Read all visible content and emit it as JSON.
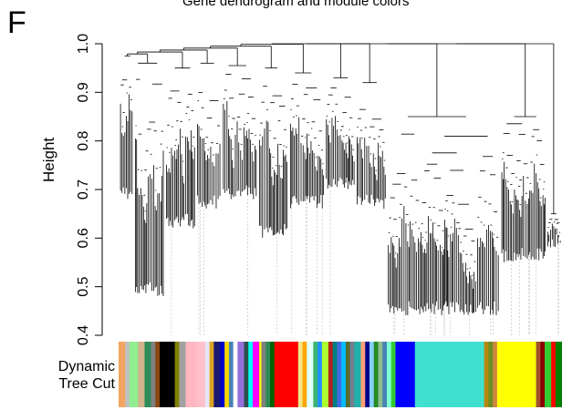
{
  "panel_label": "F",
  "colors": {
    "axis": "#000000",
    "guide": "#bbbbbb",
    "branch": "#000000"
  },
  "chart_data": {
    "type": "dendrogram",
    "title": "Gene dendrogram and module colors",
    "xlabel": "",
    "ylabel": "Height",
    "ylim": [
      0.4,
      1.0
    ],
    "yticks": [
      "0.4",
      "0.5",
      "0.6",
      "0.7",
      "0.8",
      "0.9",
      "1.0"
    ],
    "colorbar_label": [
      "Dynamic",
      "Tree Cut"
    ],
    "clusters": [
      {
        "merge_height": 0.975,
        "min_leaf_height": 0.68,
        "width": 0.03
      },
      {
        "merge_height": 0.96,
        "min_leaf_height": 0.48,
        "width": 0.06
      },
      {
        "merge_height": 0.95,
        "min_leaf_height": 0.62,
        "width": 0.06
      },
      {
        "merge_height": 0.96,
        "min_leaf_height": 0.66,
        "width": 0.05
      },
      {
        "merge_height": 0.955,
        "min_leaf_height": 0.68,
        "width": 0.07
      },
      {
        "merge_height": 0.95,
        "min_leaf_height": 0.6,
        "width": 0.06
      },
      {
        "merge_height": 0.94,
        "min_leaf_height": 0.66,
        "width": 0.07
      },
      {
        "merge_height": 0.93,
        "min_leaf_height": 0.7,
        "width": 0.06
      },
      {
        "merge_height": 0.92,
        "min_leaf_height": 0.66,
        "width": 0.06
      },
      {
        "merge_height": 0.85,
        "min_leaf_height": 0.44,
        "width": 0.22
      },
      {
        "merge_height": 0.85,
        "min_leaf_height": 0.55,
        "width": 0.09
      },
      {
        "merge_height": 0.65,
        "min_leaf_height": 0.58,
        "width": 0.03
      }
    ],
    "module_colors": [
      {
        "color": "#f4a460",
        "width": 3
      },
      {
        "color": "#c0c0c0",
        "width": 2
      },
      {
        "color": "#90ee90",
        "width": 4
      },
      {
        "color": "#d2b48c",
        "width": 3
      },
      {
        "color": "#2e8b57",
        "width": 3
      },
      {
        "color": "#808080",
        "width": 2
      },
      {
        "color": "#8b4513",
        "width": 2
      },
      {
        "color": "#000000",
        "width": 4
      },
      {
        "color": "#000000",
        "width": 3
      },
      {
        "color": "#808000",
        "width": 2
      },
      {
        "color": "#a0a0a0",
        "width": 3
      },
      {
        "color": "#ffb6c1",
        "width": 5
      },
      {
        "color": "#ffc0cb",
        "width": 4
      },
      {
        "color": "#e6e6fa",
        "width": 2
      },
      {
        "color": "#daa520",
        "width": 2
      },
      {
        "color": "#191970",
        "width": 3
      },
      {
        "color": "#0000cd",
        "width": 2
      },
      {
        "color": "#ffd700",
        "width": 2
      },
      {
        "color": "#4682b4",
        "width": 2
      },
      {
        "color": "#ffffff",
        "width": 2
      },
      {
        "color": "#9370db",
        "width": 3
      },
      {
        "color": "#2f4f4f",
        "width": 2
      },
      {
        "color": "#00ffff",
        "width": 2
      },
      {
        "color": "#ff00ff",
        "width": 3
      },
      {
        "color": "#ffff00",
        "width": 1
      },
      {
        "color": "#808080",
        "width": 2
      },
      {
        "color": "#2e8b57",
        "width": 2
      },
      {
        "color": "#006400",
        "width": 2
      },
      {
        "color": "#ff0000",
        "width": 6
      },
      {
        "color": "#ff0000",
        "width": 5
      },
      {
        "color": "#f0e68c",
        "width": 2
      },
      {
        "color": "#ffa500",
        "width": 2
      },
      {
        "color": "#e0ffff",
        "width": 3
      },
      {
        "color": "#3cb371",
        "width": 2
      },
      {
        "color": "#1e90ff",
        "width": 2
      },
      {
        "color": "#adff2f",
        "width": 3
      },
      {
        "color": "#b22222",
        "width": 2
      },
      {
        "color": "#008080",
        "width": 2
      },
      {
        "color": "#4169e1",
        "width": 2
      },
      {
        "color": "#00bfff",
        "width": 2
      },
      {
        "color": "#556b2f",
        "width": 2
      },
      {
        "color": "#708090",
        "width": 2
      },
      {
        "color": "#20b2aa",
        "width": 3
      },
      {
        "color": "#ffa07a",
        "width": 2
      },
      {
        "color": "#00008b",
        "width": 2
      },
      {
        "color": "#87cefa",
        "width": 2
      },
      {
        "color": "#228b22",
        "width": 2
      },
      {
        "color": "#8fbc8f",
        "width": 2
      },
      {
        "color": "#4682b4",
        "width": 2
      },
      {
        "color": "#7fffd4",
        "width": 2
      },
      {
        "color": "#32cd32",
        "width": 2
      },
      {
        "color": "#0000ff",
        "width": 5
      },
      {
        "color": "#0000ff",
        "width": 4
      },
      {
        "color": "#40e0d0",
        "width": 18
      },
      {
        "color": "#40e0d0",
        "width": 14
      },
      {
        "color": "#b8860b",
        "width": 2
      },
      {
        "color": "#6b8e23",
        "width": 2
      },
      {
        "color": "#cd853f",
        "width": 2
      },
      {
        "color": "#ffff00",
        "width": 10
      },
      {
        "color": "#ffff00",
        "width": 8
      },
      {
        "color": "#a0522d",
        "width": 2
      },
      {
        "color": "#8b0000",
        "width": 2
      },
      {
        "color": "#32cd32",
        "width": 3
      },
      {
        "color": "#ff0000",
        "width": 2
      },
      {
        "color": "#008000",
        "width": 3
      }
    ]
  }
}
